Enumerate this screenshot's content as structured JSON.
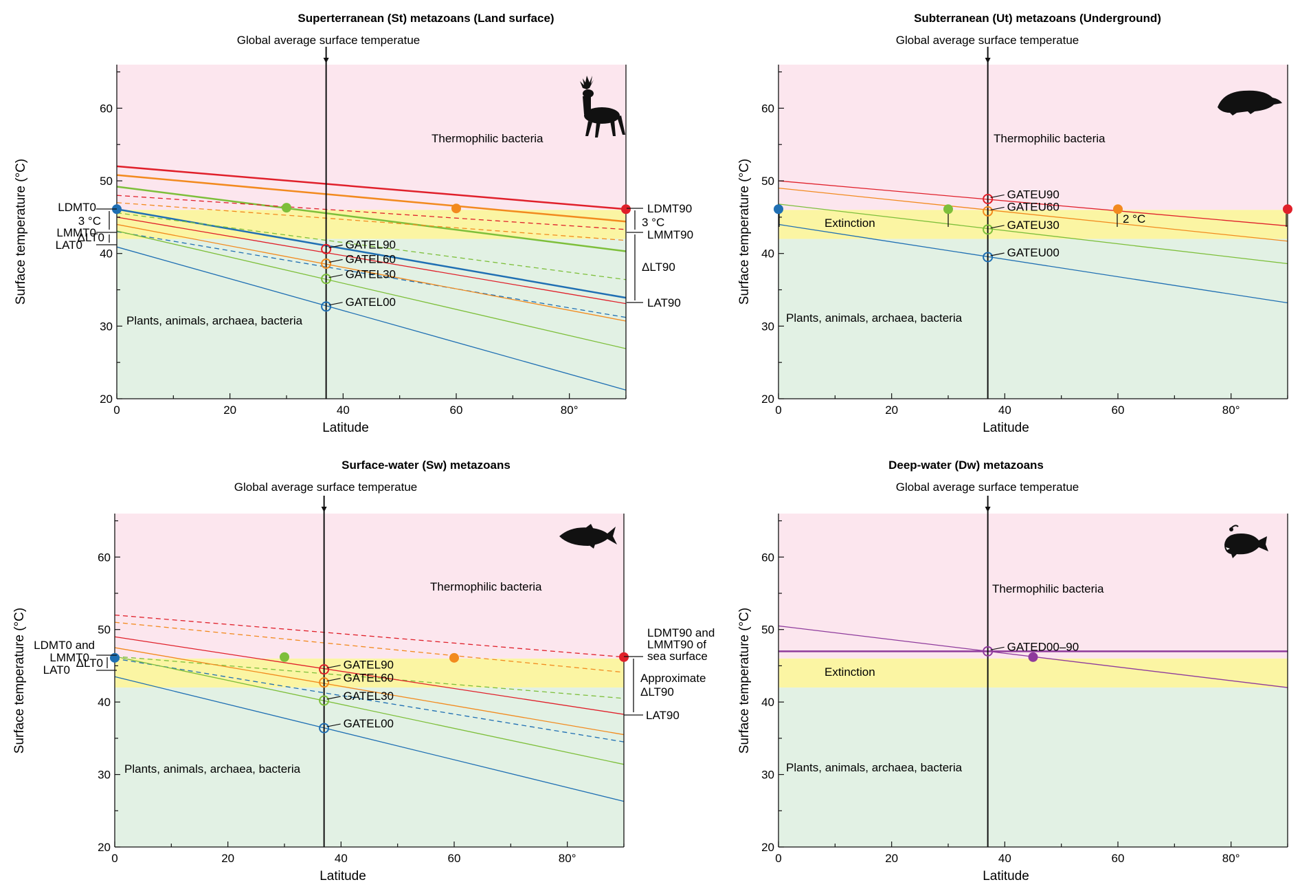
{
  "chart_data": [
    {
      "type": "line",
      "panel": "a",
      "title": "Superterranean (St) metazoans (Land surface)",
      "xlabel": "Latitude",
      "ylabel": "Surface temperature (°C)",
      "xlim": [
        0,
        90
      ],
      "ylim": [
        20,
        66
      ],
      "xticks": [
        "0",
        "20",
        "40",
        "60",
        "80°"
      ],
      "yticks": [
        "20",
        "30",
        "40",
        "50",
        "60"
      ],
      "vline": {
        "x": 37,
        "label": "Global average surface temperatue"
      },
      "bands": {
        "thermophilic": "Thermophilic bacteria",
        "plants": "Plants, animals, archaea, bacteria",
        "extinction": ""
      },
      "band_values": {
        "pink_min": 46,
        "yellow_min": 42
      },
      "series": [
        {
          "name": "LDMT 90 (red)",
          "color": "#e0202a",
          "style": "solid",
          "width": 2.5,
          "x": [
            0,
            90
          ],
          "y": [
            52.0,
            46.1
          ]
        },
        {
          "name": "LDMT 60 (orange)",
          "color": "#f28a1e",
          "style": "solid",
          "width": 2.5,
          "x": [
            0,
            90
          ],
          "y": [
            50.8,
            44.4
          ]
        },
        {
          "name": "LDMT 30 (green)",
          "color": "#7dbf3a",
          "style": "solid",
          "width": 2.5,
          "x": [
            0,
            90
          ],
          "y": [
            49.2,
            40.3
          ]
        },
        {
          "name": "LDMT 0 (blue)",
          "color": "#1f6fb3",
          "style": "solid",
          "width": 2.5,
          "x": [
            0,
            90
          ],
          "y": [
            46.1,
            33.9
          ]
        },
        {
          "name": "LMMT 90",
          "color": "#e0202a",
          "style": "dashed",
          "width": 1.3,
          "x": [
            0,
            90
          ],
          "y": [
            48.0,
            43.3
          ]
        },
        {
          "name": "LMMT 60",
          "color": "#f28a1e",
          "style": "dashed",
          "width": 1.3,
          "x": [
            0,
            90
          ],
          "y": [
            47.0,
            41.8
          ]
        },
        {
          "name": "LMMT 30",
          "color": "#7dbf3a",
          "style": "dashed",
          "width": 1.3,
          "x": [
            0,
            90
          ],
          "y": [
            45.6,
            36.4
          ]
        },
        {
          "name": "LMMT 0",
          "color": "#1f6fb3",
          "style": "dashed",
          "width": 1.3,
          "x": [
            0,
            90
          ],
          "y": [
            43.0,
            31.2
          ]
        },
        {
          "name": "LAT 90",
          "color": "#e0202a",
          "style": "solid",
          "width": 1.3,
          "x": [
            0,
            90
          ],
          "y": [
            45.0,
            33.1
          ]
        },
        {
          "name": "LAT 60",
          "color": "#f28a1e",
          "style": "solid",
          "width": 1.3,
          "x": [
            0,
            90
          ],
          "y": [
            44.0,
            30.7
          ]
        },
        {
          "name": "LAT 30",
          "color": "#7dbf3a",
          "style": "solid",
          "width": 1.3,
          "x": [
            0,
            90
          ],
          "y": [
            43.1,
            26.9
          ]
        },
        {
          "name": "LAT 0",
          "color": "#1f6fb3",
          "style": "solid",
          "width": 1.3,
          "x": [
            0,
            90
          ],
          "y": [
            40.9,
            21.2
          ]
        }
      ],
      "filled_points": [
        {
          "x": 0,
          "y": 46.1,
          "color": "#1f6fb3"
        },
        {
          "x": 30,
          "y": 46.3,
          "color": "#7dbf3a"
        },
        {
          "x": 60,
          "y": 46.2,
          "color": "#f28a1e"
        },
        {
          "x": 90,
          "y": 46.1,
          "color": "#e0202a"
        }
      ],
      "open_points": [
        {
          "x": 37,
          "y": 40.6,
          "color": "#e0202a",
          "label": "GATEL90"
        },
        {
          "x": 37,
          "y": 38.6,
          "color": "#f28a1e",
          "label": "GATEL60"
        },
        {
          "x": 37,
          "y": 36.5,
          "color": "#7dbf3a",
          "label": "GATEL30"
        },
        {
          "x": 37,
          "y": 32.7,
          "color": "#1f6fb3",
          "label": "GATEL00"
        }
      ],
      "left_labels": [
        "LDMT0",
        "3 °C",
        "LMMT0",
        "ΔLT0",
        "LAT0"
      ],
      "right_labels": [
        "LDMT90",
        "3 °C",
        "LMMT90",
        "ΔLT90",
        "LAT90"
      ],
      "silhouette": "deer"
    },
    {
      "type": "line",
      "panel": "b",
      "title": "Subterranean (Ut) metazoans (Underground)",
      "xlabel": "Latitude",
      "ylabel": "Surface temperature (°C)",
      "xlim": [
        0,
        90
      ],
      "ylim": [
        20,
        66
      ],
      "xticks": [
        "0",
        "20",
        "40",
        "60",
        "80°"
      ],
      "yticks": [
        "20",
        "30",
        "40",
        "50",
        "60"
      ],
      "vline": {
        "x": 37,
        "label": "Global average surface temperatue"
      },
      "bands": {
        "thermophilic": "Thermophilic bacteria",
        "plants": "Plants, animals, archaea, bacteria",
        "extinction": "Extinction"
      },
      "band_values": {
        "pink_min": 46,
        "yellow_min": 42
      },
      "series": [
        {
          "name": "90",
          "color": "#e0202a",
          "style": "solid",
          "width": 1.3,
          "x": [
            0,
            90
          ],
          "y": [
            50.0,
            43.8
          ]
        },
        {
          "name": "60",
          "color": "#f28a1e",
          "style": "solid",
          "width": 1.3,
          "x": [
            0,
            90
          ],
          "y": [
            49.0,
            41.7
          ]
        },
        {
          "name": "30",
          "color": "#7dbf3a",
          "style": "solid",
          "width": 1.3,
          "x": [
            0,
            90
          ],
          "y": [
            46.8,
            38.6
          ]
        },
        {
          "name": "0",
          "color": "#1f6fb3",
          "style": "solid",
          "width": 1.3,
          "x": [
            0,
            90
          ],
          "y": [
            44.0,
            33.2
          ]
        }
      ],
      "filled_points": [
        {
          "x": 0,
          "y": 46.1,
          "color": "#1f6fb3"
        },
        {
          "x": 30,
          "y": 46.1,
          "color": "#7dbf3a"
        },
        {
          "x": 60,
          "y": 46.1,
          "color": "#f28a1e"
        },
        {
          "x": 90,
          "y": 46.1,
          "color": "#e0202a"
        }
      ],
      "open_points": [
        {
          "x": 37,
          "y": 47.5,
          "color": "#e0202a",
          "label": "GATEU90"
        },
        {
          "x": 37,
          "y": 45.8,
          "color": "#f28a1e",
          "label": "GATEU60"
        },
        {
          "x": 37,
          "y": 43.3,
          "color": "#7dbf3a",
          "label": "GATEU30"
        },
        {
          "x": 37,
          "y": 39.5,
          "color": "#1f6fb3",
          "label": "GATEU00"
        }
      ],
      "annotations": [
        "2 °C"
      ],
      "silhouette": "mole"
    },
    {
      "type": "line",
      "panel": "c",
      "title": "Surface-water (Sw) metazoans",
      "xlabel": "Latitude",
      "ylabel": "Surface temperature (°C)",
      "xlim": [
        0,
        90
      ],
      "ylim": [
        20,
        66
      ],
      "xticks": [
        "0",
        "20",
        "40",
        "60",
        "80°"
      ],
      "yticks": [
        "20",
        "30",
        "40",
        "50",
        "60"
      ],
      "vline": {
        "x": 37,
        "label": "Global average surface temperatue"
      },
      "bands": {
        "thermophilic": "Thermophilic bacteria",
        "plants": "Plants, animals, archaea, bacteria",
        "extinction": ""
      },
      "band_values": {
        "pink_min": 46,
        "yellow_min": 42
      },
      "series": [
        {
          "name": "dashed 90",
          "color": "#e0202a",
          "style": "dashed",
          "width": 1.3,
          "x": [
            0,
            90
          ],
          "y": [
            52.0,
            46.2
          ]
        },
        {
          "name": "dashed 60",
          "color": "#f28a1e",
          "style": "dashed",
          "width": 1.3,
          "x": [
            0,
            90
          ],
          "y": [
            51.0,
            44.1
          ]
        },
        {
          "name": "dashed 30",
          "color": "#7dbf3a",
          "style": "dashed",
          "width": 1.3,
          "x": [
            0,
            90
          ],
          "y": [
            46.3,
            40.5
          ]
        },
        {
          "name": "dashed 0",
          "color": "#1f6fb3",
          "style": "dashed",
          "width": 1.3,
          "x": [
            0,
            90
          ],
          "y": [
            46.0,
            34.5
          ]
        },
        {
          "name": "solid 90",
          "color": "#e0202a",
          "style": "solid",
          "width": 1.3,
          "x": [
            0,
            90
          ],
          "y": [
            49.0,
            38.3
          ]
        },
        {
          "name": "solid 60",
          "color": "#f28a1e",
          "style": "solid",
          "width": 1.3,
          "x": [
            0,
            90
          ],
          "y": [
            47.5,
            35.5
          ]
        },
        {
          "name": "solid 30",
          "color": "#7dbf3a",
          "style": "solid",
          "width": 1.3,
          "x": [
            0,
            90
          ],
          "y": [
            46.3,
            31.4
          ]
        },
        {
          "name": "solid 0",
          "color": "#1f6fb3",
          "style": "solid",
          "width": 1.3,
          "x": [
            0,
            90
          ],
          "y": [
            43.5,
            26.3
          ]
        }
      ],
      "filled_points": [
        {
          "x": 0,
          "y": 46.1,
          "color": "#1f6fb3"
        },
        {
          "x": 30,
          "y": 46.2,
          "color": "#7dbf3a"
        },
        {
          "x": 60,
          "y": 46.1,
          "color": "#f28a1e"
        },
        {
          "x": 90,
          "y": 46.2,
          "color": "#e0202a"
        }
      ],
      "open_points": [
        {
          "x": 37,
          "y": 44.5,
          "color": "#e0202a",
          "label": "GATEL90"
        },
        {
          "x": 37,
          "y": 42.7,
          "color": "#f28a1e",
          "label": "GATEL60"
        },
        {
          "x": 37,
          "y": 40.2,
          "color": "#7dbf3a",
          "label": "GATEL30"
        },
        {
          "x": 37,
          "y": 36.4,
          "color": "#1f6fb3",
          "label": "GATEL00"
        }
      ],
      "left_labels": [
        "LDMT0 and",
        "LMMT0",
        "LAT0",
        "ΔLT0"
      ],
      "right_labels": [
        "LDMT90 and",
        "LMMT90 of",
        "sea surface",
        "Approximate",
        "ΔLT90",
        "LAT90"
      ],
      "silhouette": "fish"
    },
    {
      "type": "line",
      "panel": "d",
      "title": "Deep-water (Dw) metazoans",
      "xlabel": "Latitude",
      "ylabel": "Surface temperature (°C)",
      "xlim": [
        0,
        90
      ],
      "ylim": [
        20,
        66
      ],
      "xticks": [
        "0",
        "20",
        "40",
        "60",
        "80°"
      ],
      "yticks": [
        "20",
        "30",
        "40",
        "50",
        "60"
      ],
      "vline": {
        "x": 37,
        "label": "Global average surface temperatue"
      },
      "bands": {
        "thermophilic": "Thermophilic bacteria",
        "plants": "Plants, animals, archaea, bacteria",
        "extinction": "Extinction"
      },
      "band_values": {
        "pink_min": 46,
        "yellow_min": 42
      },
      "series": [
        {
          "name": "deep-water constant",
          "color": "#8e3a9c",
          "style": "solid",
          "width": 2.5,
          "x": [
            0,
            90
          ],
          "y": [
            47.0,
            47.0
          ]
        },
        {
          "name": "sloped",
          "color": "#8e3a9c",
          "style": "solid",
          "width": 1.3,
          "x": [
            0,
            90
          ],
          "y": [
            50.5,
            42.0
          ]
        }
      ],
      "filled_points": [
        {
          "x": 45,
          "y": 46.2,
          "color": "#8e3a9c"
        }
      ],
      "open_points": [
        {
          "x": 37,
          "y": 47.0,
          "color": "#8e3a9c",
          "label": "GATED00–90"
        }
      ],
      "silhouette": "anglerfish"
    }
  ],
  "colors": {
    "pink": "#fce6ee",
    "yellow": "#fbf5a3",
    "green": "#e2f1e4",
    "axis": "#111111"
  }
}
